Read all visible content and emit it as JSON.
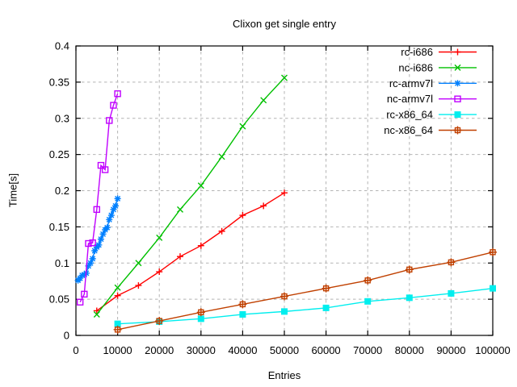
{
  "chart_data": {
    "type": "line",
    "title": "Clixon get single entry",
    "xlabel": "Entries",
    "ylabel": "Time[s]",
    "xlim": [
      0,
      100000
    ],
    "ylim": [
      0.0,
      0.4
    ],
    "x_ticks": [
      0,
      10000,
      20000,
      30000,
      40000,
      50000,
      60000,
      70000,
      80000,
      90000,
      100000
    ],
    "x_tick_labels": [
      "0",
      "10000",
      "20000",
      "30000",
      "40000",
      "50000",
      "60000",
      "70000",
      "80000",
      "90000",
      "100000"
    ],
    "y_ticks": [
      0,
      0.05,
      0.1,
      0.15,
      0.2,
      0.25,
      0.3,
      0.35,
      0.4
    ],
    "y_tick_labels": [
      "0",
      "0.05",
      "0.1",
      "0.15",
      "0.2",
      "0.25",
      "0.3",
      "0.35",
      "0.4"
    ],
    "grid": true,
    "grid_color": "#b4b4b4",
    "background": "#ffffff",
    "legend_position": "top-right-inside",
    "series": [
      {
        "name": "rc-i686",
        "color": "#ff0000",
        "marker": "plus",
        "x": [
          5000,
          10000,
          15000,
          20000,
          25000,
          30000,
          35000,
          40000,
          45000,
          50000
        ],
        "y": [
          0.034,
          0.055,
          0.069,
          0.088,
          0.109,
          0.124,
          0.144,
          0.166,
          0.179,
          0.197
        ]
      },
      {
        "name": "nc-i686",
        "color": "#00c000",
        "marker": "cross",
        "x": [
          5000,
          10000,
          15000,
          20000,
          25000,
          30000,
          35000,
          40000,
          45000,
          50000
        ],
        "y": [
          0.029,
          0.066,
          0.1,
          0.135,
          0.174,
          0.207,
          0.247,
          0.289,
          0.325,
          0.356
        ]
      },
      {
        "name": "rc-armv7l",
        "color": "#0080ff",
        "marker": "asterisk",
        "x": [
          500,
          1000,
          1500,
          2000,
          2500,
          3000,
          3500,
          4000,
          4500,
          5000,
          5500,
          6000,
          6500,
          7000,
          7500,
          8000,
          8500,
          9000,
          9500,
          10000
        ],
        "y": [
          0.076,
          0.079,
          0.083,
          0.084,
          0.086,
          0.096,
          0.1,
          0.106,
          0.117,
          0.122,
          0.125,
          0.133,
          0.14,
          0.146,
          0.149,
          0.16,
          0.166,
          0.174,
          0.179,
          0.189
        ]
      },
      {
        "name": "nc-armv7l",
        "color": "#c000ff",
        "marker": "open-square",
        "x": [
          1000,
          2000,
          3000,
          4000,
          5000,
          6000,
          7000,
          8000,
          9000,
          10000
        ],
        "y": [
          0.046,
          0.057,
          0.127,
          0.128,
          0.174,
          0.235,
          0.229,
          0.297,
          0.318,
          0.334
        ]
      },
      {
        "name": "rc-x86_64",
        "color": "#00eeee",
        "marker": "filled-square",
        "x": [
          10000,
          20000,
          30000,
          40000,
          50000,
          60000,
          70000,
          80000,
          90000,
          100000
        ],
        "y": [
          0.016,
          0.019,
          0.023,
          0.029,
          0.033,
          0.038,
          0.047,
          0.052,
          0.058,
          0.065
        ]
      },
      {
        "name": "nc-x86_64",
        "color": "#c04000",
        "marker": "boxed-plus",
        "x": [
          10000,
          20000,
          30000,
          40000,
          50000,
          60000,
          70000,
          80000,
          90000,
          100000
        ],
        "y": [
          0.008,
          0.02,
          0.032,
          0.043,
          0.054,
          0.065,
          0.076,
          0.091,
          0.101,
          0.115
        ]
      }
    ]
  }
}
